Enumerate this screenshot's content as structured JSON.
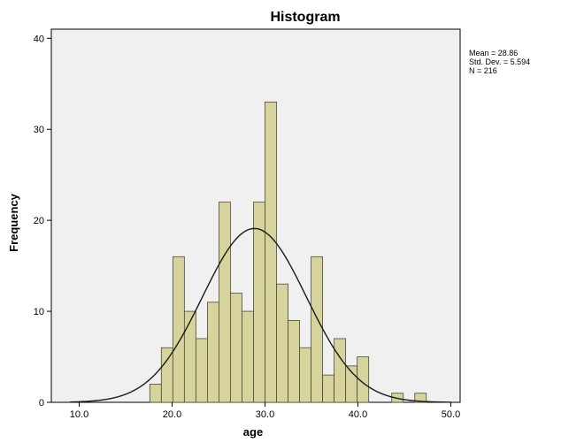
{
  "chart_data": {
    "type": "bar",
    "title": "Histogram",
    "xlabel": "age",
    "ylabel": "Frequency",
    "xlim": [
      7,
      51
    ],
    "ylim": [
      0,
      41
    ],
    "x_ticks": [
      10,
      20,
      30,
      40,
      50
    ],
    "x_tick_labels": [
      "10.0",
      "20.0",
      "30.0",
      "40.0",
      "50.0"
    ],
    "y_ticks": [
      0,
      10,
      20,
      30,
      40
    ],
    "y_tick_labels": [
      "0",
      "10",
      "20",
      "30",
      "40"
    ],
    "bin_width": 1.24,
    "bin_start": 17.6,
    "values": [
      2,
      6,
      16,
      10,
      7,
      11,
      22,
      12,
      10,
      22,
      33,
      13,
      9,
      6,
      16,
      3,
      7,
      4,
      5,
      0,
      0,
      1,
      0,
      1
    ],
    "normal_curve": {
      "mean": 28.86,
      "sd": 5.594,
      "n": 216
    },
    "grid": false,
    "colors": {
      "plot_background": "#f0f0f0",
      "bar_fill": "#d6d49c",
      "bar_stroke": "#4a4a3a",
      "curve": "#1a1a1a"
    },
    "stats": {
      "mean": "Mean = 28.86",
      "sd": "Std. Dev. = 5.594",
      "n": "N = 216"
    }
  }
}
